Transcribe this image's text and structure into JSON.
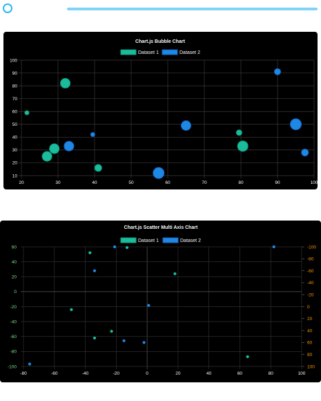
{
  "colors": {
    "accent": "#29b6f6",
    "dataset1": "#1abc9c",
    "dataset2": "#1e88e5",
    "panel": "#000000",
    "right_axis": "#ff9800",
    "left_axis": "#7ee08a"
  },
  "chart_data": [
    {
      "type": "bubble",
      "title": "Chart.js Bubble Chart",
      "legend_position": "top",
      "grid": true,
      "xlim": [
        20,
        100
      ],
      "ylim": [
        10,
        100
      ],
      "x_ticks": [
        20,
        30,
        40,
        50,
        60,
        70,
        80,
        90,
        100
      ],
      "y_ticks": [
        10,
        20,
        30,
        40,
        50,
        60,
        70,
        80,
        90,
        100
      ],
      "series": [
        {
          "name": "Dataset 1",
          "points": [
            {
              "x": 21.5,
              "y": 59,
              "r": 3
            },
            {
              "x": 27,
              "y": 25,
              "r": 7
            },
            {
              "x": 29,
              "y": 31,
              "r": 7
            },
            {
              "x": 32,
              "y": 82,
              "r": 7
            },
            {
              "x": 41,
              "y": 16,
              "r": 5
            },
            {
              "x": 79.5,
              "y": 43.5,
              "r": 4
            },
            {
              "x": 80.5,
              "y": 33,
              "r": 7.5
            }
          ]
        },
        {
          "name": "Dataset 2",
          "points": [
            {
              "x": 33,
              "y": 33,
              "r": 7
            },
            {
              "x": 39.5,
              "y": 42,
              "r": 3
            },
            {
              "x": 57.5,
              "y": 12,
              "r": 8
            },
            {
              "x": 65,
              "y": 49,
              "r": 7
            },
            {
              "x": 90,
              "y": 91,
              "r": 4.5
            },
            {
              "x": 95,
              "y": 50,
              "r": 8
            },
            {
              "x": 97.5,
              "y": 28,
              "r": 5
            }
          ]
        }
      ]
    },
    {
      "type": "scatter",
      "title": "Chart.js Scatter Multi Axis Chart",
      "legend_position": "top",
      "grid": true,
      "xlim": [
        -80,
        100
      ],
      "ylim_left": [
        -100,
        60
      ],
      "ylim_right": [
        100,
        -100
      ],
      "x_ticks": [
        -80,
        -60,
        -40,
        -20,
        0,
        20,
        40,
        60,
        80,
        100
      ],
      "y_left_ticks": [
        60,
        40,
        20,
        0,
        -20,
        -40,
        -60,
        -80,
        -100
      ],
      "y_right_ticks": [
        -100,
        -80,
        -60,
        -40,
        -20,
        0,
        20,
        40,
        60,
        80,
        100
      ],
      "series": [
        {
          "name": "Dataset 1",
          "axis": "left",
          "points": [
            {
              "x": -37,
              "y": 52
            },
            {
              "x": -13,
              "y": 59
            },
            {
              "x": 18,
              "y": 24
            },
            {
              "x": -49,
              "y": -24
            },
            {
              "x": -34,
              "y": -62
            },
            {
              "x": -23,
              "y": -53
            },
            {
              "x": 65,
              "y": -87
            }
          ]
        },
        {
          "name": "Dataset 2",
          "axis": "right",
          "points": [
            {
              "x": -21,
              "y": -100
            },
            {
              "x": 82,
              "y": -100
            },
            {
              "x": -34,
              "y": -60
            },
            {
              "x": 1,
              "y": -2
            },
            {
              "x": -15,
              "y": 57
            },
            {
              "x": -2,
              "y": 60
            },
            {
              "x": -76,
              "y": 96
            }
          ]
        }
      ]
    }
  ]
}
